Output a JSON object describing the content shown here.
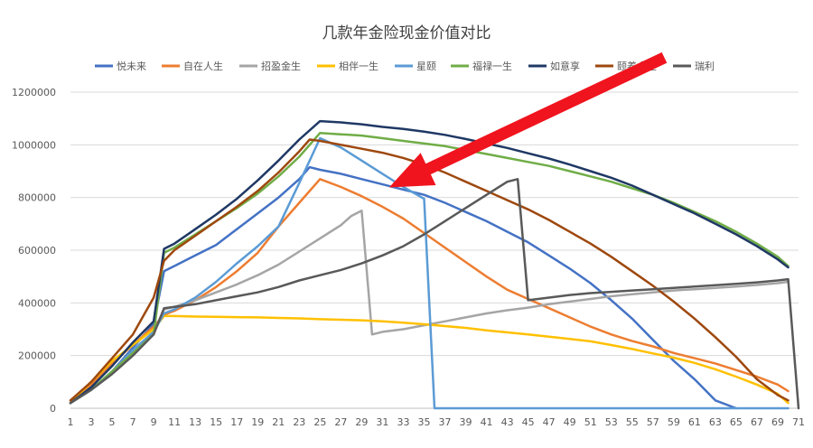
{
  "chart_data": {
    "type": "line",
    "title": "几款年金险现金价值对比",
    "xlabel": "",
    "ylabel": "",
    "ylim": [
      0,
      1200000
    ],
    "yticks": [
      0,
      200000,
      400000,
      600000,
      800000,
      1000000,
      1200000
    ],
    "ytick_labels": [
      "0",
      "200000",
      "400000",
      "600000",
      "800000",
      "1000000",
      "1200000"
    ],
    "xlim": [
      1,
      71
    ],
    "xticks": [
      1,
      3,
      5,
      7,
      9,
      11,
      13,
      15,
      17,
      19,
      21,
      23,
      25,
      27,
      29,
      31,
      33,
      35,
      37,
      39,
      41,
      43,
      45,
      47,
      49,
      51,
      53,
      55,
      57,
      59,
      61,
      63,
      65,
      67,
      69,
      71
    ],
    "xtick_labels": [
      "1",
      "3",
      "5",
      "7",
      "9",
      "11",
      "13",
      "15",
      "17",
      "19",
      "21",
      "23",
      "25",
      "27",
      "29",
      "31",
      "33",
      "35",
      "37",
      "39",
      "41",
      "43",
      "45",
      "47",
      "49",
      "51",
      "53",
      "55",
      "57",
      "59",
      "61",
      "63",
      "65",
      "67",
      "69",
      "71"
    ],
    "grid": "horizontal",
    "legend_position": "top",
    "annotation": "red arrow pointing toward the crossing point of the curves near year 30",
    "series": [
      {
        "name": "悦未来",
        "color": "#4472C4",
        "x": [
          1,
          3,
          5,
          7,
          9,
          10,
          11,
          13,
          15,
          17,
          19,
          21,
          23,
          24,
          25,
          27,
          29,
          31,
          33,
          35,
          37,
          39,
          41,
          43,
          45,
          47,
          49,
          51,
          53,
          55,
          57,
          59,
          61,
          63,
          65
        ],
        "y": [
          20000,
          70000,
          140000,
          230000,
          320000,
          520000,
          540000,
          580000,
          620000,
          680000,
          740000,
          800000,
          870000,
          915000,
          905000,
          890000,
          870000,
          850000,
          830000,
          810000,
          780000,
          745000,
          710000,
          670000,
          630000,
          580000,
          530000,
          475000,
          410000,
          340000,
          260000,
          180000,
          110000,
          30000,
          0
        ]
      },
      {
        "name": "自在人生",
        "color": "#ED7D31",
        "x": [
          1,
          3,
          5,
          7,
          9,
          10,
          11,
          13,
          15,
          17,
          19,
          21,
          23,
          25,
          27,
          29,
          31,
          33,
          35,
          37,
          39,
          41,
          43,
          45,
          47,
          49,
          51,
          53,
          55,
          57,
          59,
          61,
          63,
          65,
          67,
          69,
          70
        ],
        "y": [
          30000,
          90000,
          170000,
          240000,
          310000,
          355000,
          370000,
          410000,
          460000,
          520000,
          590000,
          690000,
          780000,
          870000,
          840000,
          805000,
          765000,
          720000,
          665000,
          610000,
          555000,
          500000,
          450000,
          415000,
          380000,
          345000,
          310000,
          280000,
          255000,
          235000,
          210000,
          190000,
          170000,
          145000,
          120000,
          90000,
          65000
        ]
      },
      {
        "name": "招盈金生",
        "color": "#A5A5A5",
        "x": [
          1,
          3,
          5,
          7,
          9,
          10,
          11,
          13,
          15,
          17,
          19,
          21,
          23,
          25,
          27,
          28,
          29,
          30,
          31,
          33,
          35,
          37,
          39,
          41,
          43,
          45,
          47,
          49,
          51,
          53,
          55,
          57,
          59,
          61,
          63,
          65,
          67,
          69,
          70
        ],
        "y": [
          20000,
          70000,
          140000,
          220000,
          290000,
          375000,
          385000,
          410000,
          440000,
          470000,
          505000,
          545000,
          595000,
          645000,
          695000,
          730000,
          750000,
          280000,
          290000,
          300000,
          315000,
          330000,
          345000,
          360000,
          372000,
          382000,
          395000,
          405000,
          415000,
          425000,
          433000,
          440000,
          447000,
          452000,
          457000,
          462000,
          468000,
          475000,
          480000
        ]
      },
      {
        "name": "相伴一生",
        "color": "#FFC000",
        "x": [
          1,
          3,
          5,
          7,
          9,
          10,
          11,
          13,
          15,
          17,
          19,
          21,
          23,
          25,
          27,
          29,
          31,
          33,
          35,
          37,
          39,
          41,
          43,
          45,
          47,
          49,
          51,
          53,
          55,
          57,
          59,
          61,
          63,
          65,
          67,
          69,
          70
        ],
        "y": [
          20000,
          100000,
          180000,
          240000,
          300000,
          350000,
          350000,
          348000,
          347000,
          346000,
          345000,
          343000,
          341000,
          338000,
          336000,
          334000,
          330000,
          325000,
          319000,
          312000,
          305000,
          296000,
          288000,
          280000,
          272000,
          263000,
          254000,
          240000,
          225000,
          208000,
          192000,
          172000,
          148000,
          120000,
          90000,
          55000,
          20000
        ]
      },
      {
        "name": "星颐",
        "color": "#5B9BD5",
        "x": [
          1,
          3,
          5,
          7,
          9,
          10,
          11,
          13,
          15,
          17,
          19,
          21,
          23,
          25,
          27,
          29,
          31,
          33,
          35,
          36,
          37,
          39,
          41,
          43,
          45,
          47,
          49,
          51,
          53,
          55,
          57,
          59,
          61,
          63,
          65,
          67,
          69,
          70
        ],
        "y": [
          20000,
          70000,
          140000,
          220000,
          290000,
          360000,
          375000,
          420000,
          480000,
          550000,
          615000,
          690000,
          855000,
          1025000,
          990000,
          940000,
          890000,
          840000,
          795000,
          0,
          0,
          0,
          0,
          0,
          0,
          0,
          0,
          0,
          0,
          0,
          0,
          0,
          0,
          0,
          0,
          0,
          0,
          0
        ]
      },
      {
        "name": "福禄一生",
        "color": "#70AD47",
        "x": [
          1,
          3,
          5,
          7,
          9,
          10,
          11,
          13,
          15,
          17,
          19,
          21,
          23,
          25,
          27,
          29,
          31,
          33,
          35,
          37,
          39,
          41,
          43,
          45,
          47,
          49,
          51,
          53,
          55,
          57,
          59,
          61,
          63,
          65,
          67,
          69,
          70
        ],
        "y": [
          20000,
          70000,
          140000,
          210000,
          280000,
          590000,
          610000,
          660000,
          710000,
          760000,
          815000,
          880000,
          955000,
          1045000,
          1040000,
          1035000,
          1025000,
          1015000,
          1005000,
          995000,
          980000,
          965000,
          950000,
          935000,
          920000,
          900000,
          880000,
          860000,
          835000,
          810000,
          780000,
          745000,
          710000,
          670000,
          625000,
          575000,
          540000
        ]
      },
      {
        "name": "如意享",
        "color": "#1F3864",
        "x": [
          1,
          3,
          5,
          7,
          9,
          10,
          11,
          13,
          15,
          17,
          19,
          21,
          23,
          25,
          27,
          29,
          31,
          33,
          35,
          37,
          39,
          41,
          43,
          45,
          47,
          49,
          51,
          53,
          55,
          57,
          59,
          61,
          63,
          65,
          67,
          69,
          70
        ],
        "y": [
          20000,
          80000,
          160000,
          250000,
          330000,
          605000,
          625000,
          680000,
          735000,
          795000,
          865000,
          940000,
          1020000,
          1090000,
          1085000,
          1078000,
          1068000,
          1060000,
          1050000,
          1038000,
          1022000,
          1005000,
          988000,
          968000,
          948000,
          925000,
          900000,
          875000,
          845000,
          810000,
          775000,
          740000,
          700000,
          660000,
          615000,
          565000,
          535000
        ]
      },
      {
        "name": "颐养金生",
        "color": "#9E480E",
        "x": [
          1,
          3,
          5,
          7,
          9,
          10,
          11,
          13,
          15,
          17,
          19,
          21,
          23,
          24,
          25,
          27,
          29,
          31,
          33,
          35,
          37,
          39,
          41,
          43,
          45,
          47,
          49,
          51,
          53,
          55,
          57,
          59,
          61,
          63,
          65,
          67,
          69,
          70
        ],
        "y": [
          30000,
          100000,
          190000,
          280000,
          420000,
          560000,
          600000,
          655000,
          710000,
          765000,
          825000,
          895000,
          975000,
          1020000,
          1015000,
          1000000,
          985000,
          970000,
          950000,
          925000,
          895000,
          860000,
          825000,
          790000,
          755000,
          715000,
          670000,
          625000,
          575000,
          520000,
          465000,
          405000,
          340000,
          270000,
          195000,
          110000,
          50000,
          30000
        ]
      },
      {
        "name": "瑞利",
        "color": "#595959",
        "x": [
          1,
          3,
          5,
          7,
          9,
          10,
          11,
          13,
          15,
          17,
          19,
          21,
          23,
          25,
          27,
          29,
          31,
          33,
          35,
          37,
          39,
          41,
          43,
          44,
          45,
          47,
          49,
          51,
          53,
          55,
          57,
          59,
          61,
          63,
          65,
          67,
          69,
          70,
          71
        ],
        "y": [
          20000,
          70000,
          130000,
          200000,
          280000,
          380000,
          385000,
          395000,
          410000,
          425000,
          440000,
          460000,
          485000,
          505000,
          525000,
          550000,
          580000,
          615000,
          660000,
          710000,
          760000,
          810000,
          860000,
          870000,
          410000,
          420000,
          430000,
          437000,
          442000,
          447000,
          452000,
          457000,
          462000,
          467000,
          472000,
          478000,
          485000,
          490000,
          0
        ]
      }
    ]
  }
}
